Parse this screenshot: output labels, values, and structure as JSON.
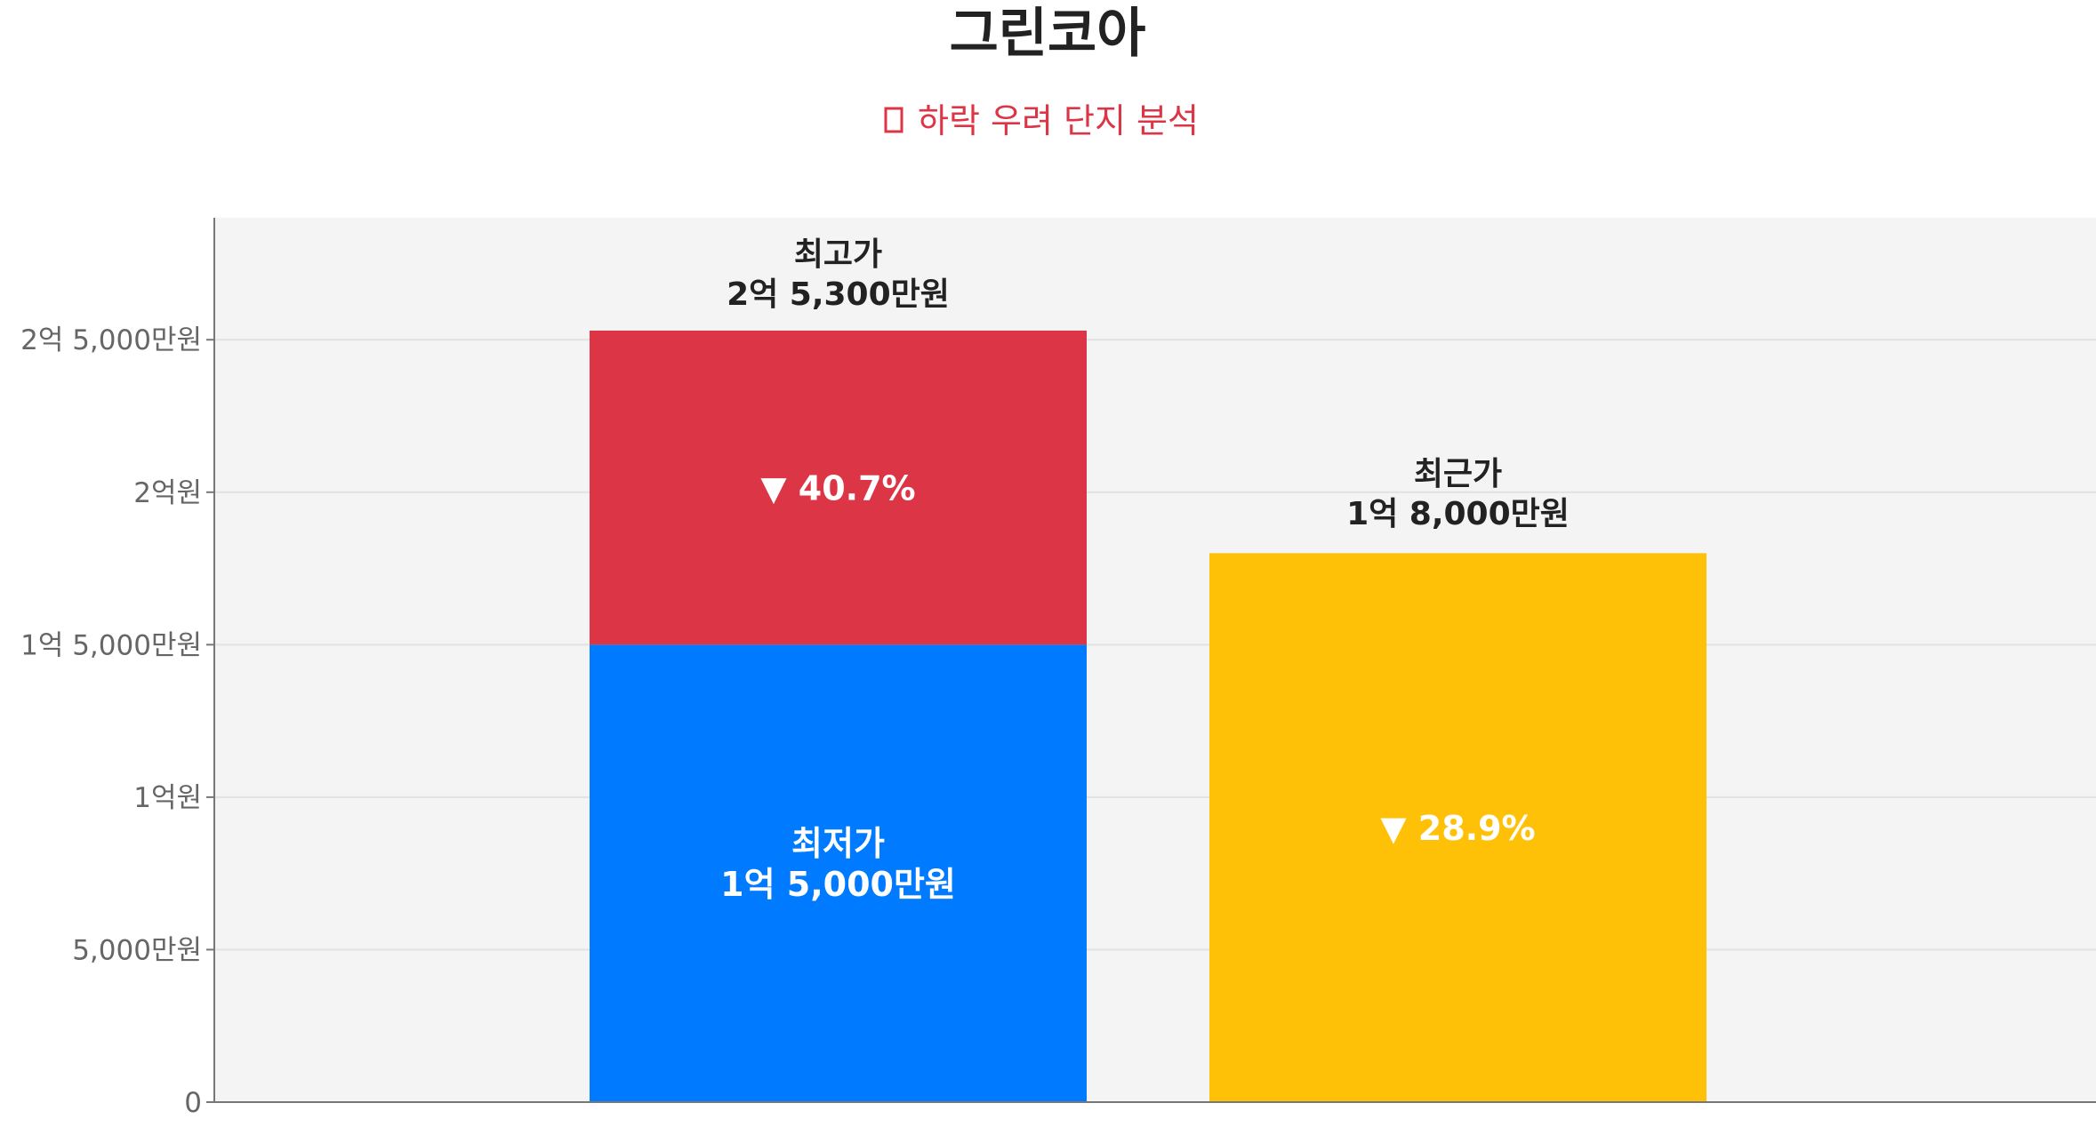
{
  "chart_data": {
    "type": "bar",
    "title": "그린코아",
    "subtitle": "하락 우려 단지 분석",
    "subtitle_icon": "warning-icon",
    "y_unit": "만원",
    "ylim": [
      0,
      29000
    ],
    "y_ticks": [
      {
        "value": 0,
        "label": "0"
      },
      {
        "value": 5000,
        "label": "5,000만원"
      },
      {
        "value": 10000,
        "label": "1억원"
      },
      {
        "value": 15000,
        "label": "1억 5,000만원"
      },
      {
        "value": 20000,
        "label": "2억원"
      },
      {
        "value": 25000,
        "label": "2억 5,000만원"
      }
    ],
    "bars": [
      {
        "stacked": true,
        "low": {
          "name": "최저가",
          "value": 15000,
          "value_label": "1억 5,000만원",
          "color": "#007bff"
        },
        "high": {
          "name": "최고가",
          "value": 25300,
          "value_label": "2억 5,300만원",
          "color": "#dc3545"
        },
        "change_label": "▼ 40.7%"
      },
      {
        "stacked": false,
        "name": "최근가",
        "value": 18000,
        "value_label": "1억 8,000만원",
        "color": "#ffc107",
        "change_label": "▼ 28.9%"
      }
    ],
    "grid": true,
    "legend": "none",
    "colors": {
      "plot_bg": "#f4f4f4",
      "grid": "#e2e2e2",
      "axis": "#777777"
    }
  }
}
